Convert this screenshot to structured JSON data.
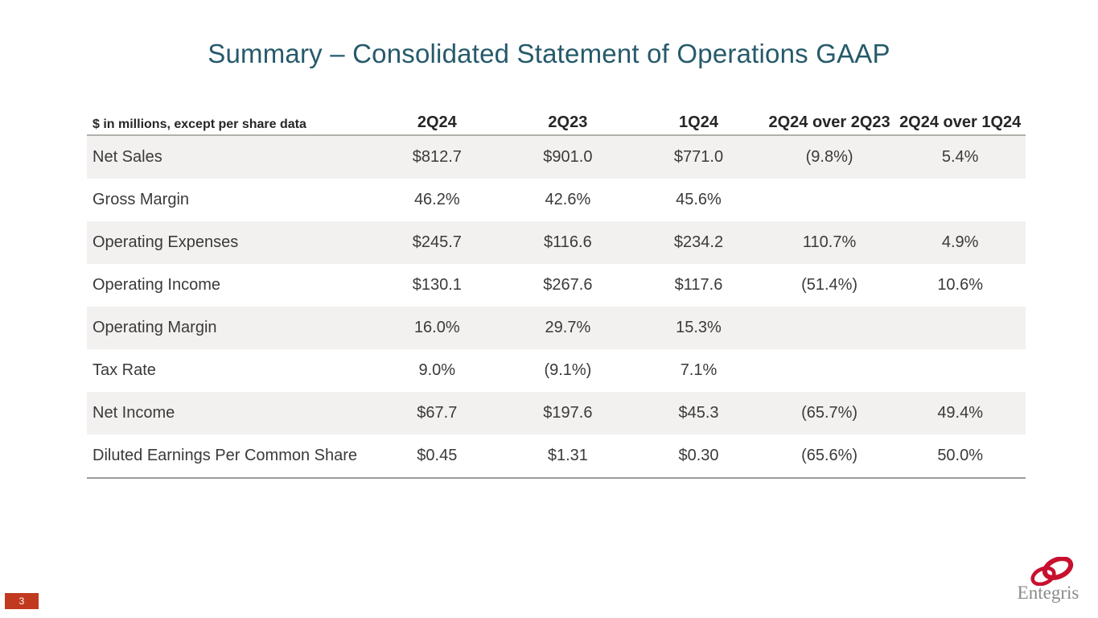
{
  "slide": {
    "title": "Summary – Consolidated Statement of Operations GAAP",
    "page_number": "3"
  },
  "table": {
    "note": "$ in millions, except per share data",
    "headers": [
      "2Q24",
      "2Q23",
      "1Q24",
      "2Q24 over 2Q23",
      "2Q24 over 1Q24"
    ],
    "rows": [
      {
        "label": "Net Sales",
        "values": [
          "$812.7",
          "$901.0",
          "$771.0",
          "(9.8%)",
          "5.4%"
        ]
      },
      {
        "label": "Gross Margin",
        "values": [
          "46.2%",
          "42.6%",
          "45.6%",
          "",
          ""
        ]
      },
      {
        "label": "Operating Expenses",
        "values": [
          "$245.7",
          "$116.6",
          "$234.2",
          "110.7%",
          "4.9%"
        ]
      },
      {
        "label": "Operating Income",
        "values": [
          "$130.1",
          "$267.6",
          "$117.6",
          "(51.4%)",
          "10.6%"
        ]
      },
      {
        "label": "Operating Margin",
        "values": [
          "16.0%",
          "29.7%",
          "15.3%",
          "",
          ""
        ]
      },
      {
        "label": "Tax Rate",
        "values": [
          "9.0%",
          "(9.1%)",
          "7.1%",
          "",
          ""
        ]
      },
      {
        "label": "Net Income",
        "values": [
          "$67.7",
          "$197.6",
          "$45.3",
          "(65.7%)",
          "49.4%"
        ]
      },
      {
        "label": "Diluted Earnings Per Common Share",
        "values": [
          "$0.45",
          "$1.31",
          "$0.30",
          "(65.6%)",
          "50.0%"
        ]
      }
    ]
  },
  "logo": {
    "wordmark": "Entegris",
    "ring_color": "#c8102e",
    "text_color": "#8a8a8a"
  },
  "colors": {
    "title": "#265a6b",
    "row_stripe": "#f2f1ef",
    "badge": "#c13a20",
    "body_text": "#3a3a3a"
  }
}
